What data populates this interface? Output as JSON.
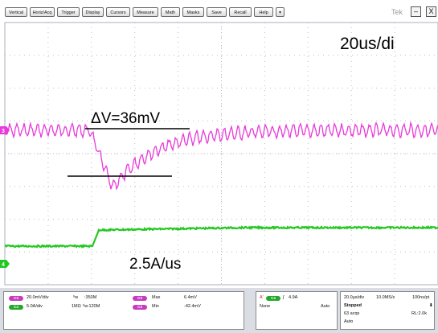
{
  "menu": {
    "buttons": [
      "Vertical",
      "Horiz/Acq",
      "Trigger",
      "Display",
      "Cursors",
      "Measure",
      "Math",
      "Masks",
      "Save",
      "Recall",
      "Help"
    ],
    "dropdown_glyph": "▾",
    "title": "Tek",
    "minimize_glyph": "–",
    "close_glyph": "X"
  },
  "annotations": {
    "timebase": "20us/di",
    "delta_v": "ΔV=36mV",
    "slew": "2.5A/us"
  },
  "scope": {
    "colors": {
      "ch3": "#e83ad8",
      "ch4": "#22c81f",
      "grid": "#b9bec8"
    },
    "markers": {
      "ch3": "3",
      "ch4": "4"
    },
    "trace_ch3": {
      "baseline_mv": 0,
      "ripple_mv": 10,
      "dip_mv": -36
    },
    "trace_ch4": {
      "before_a": 0,
      "after_a": 5.0
    }
  },
  "status": {
    "ch3": {
      "badge": "C3",
      "scale": "20.0mV/div",
      "bw_icon": "ᵇw",
      "bw": ":350M"
    },
    "ch4": {
      "badge": "C4",
      "scale": "5.0A/div",
      "coupling": "1MΩ",
      "bw_icon": "ᵇw",
      "bw": ":120M"
    },
    "meas": [
      {
        "badge": "C3",
        "label": "Max",
        "value": "6.4mV"
      },
      {
        "badge": "C3",
        "label": "Min",
        "value": "-42.4mV"
      }
    ],
    "trigger": {
      "source_label": "A'",
      "badge": "C4",
      "slope": "∫",
      "level": "4.9A",
      "mode_left": "None",
      "mode_right": "Auto"
    },
    "acq": {
      "rate": "20.0μs/div",
      "sample": "10.0MS/s",
      "pts": "100ns/pt",
      "state": "Stopped",
      "acqs": "63 acqs",
      "rl": "RL:2.0k",
      "mode": "Auto"
    }
  }
}
